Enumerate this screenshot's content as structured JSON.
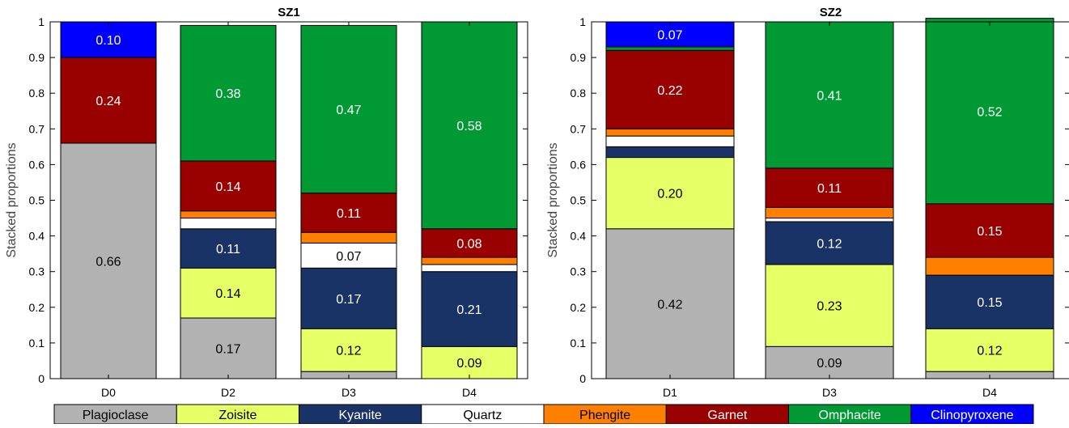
{
  "legend": [
    {
      "name": "Plagioclase",
      "color": "#b2b2b2",
      "text_color": "#000000"
    },
    {
      "name": "Zoisite",
      "color": "#e6ff66",
      "text_color": "#000000"
    },
    {
      "name": "Kyanite",
      "color": "#1a3366",
      "text_color": "#ffffff"
    },
    {
      "name": "Quartz",
      "color": "#ffffff",
      "text_color": "#000000"
    },
    {
      "name": "Phengite",
      "color": "#ff8000",
      "text_color": "#000000"
    },
    {
      "name": "Garnet",
      "color": "#990000",
      "text_color": "#ffffff"
    },
    {
      "name": "Omphacite",
      "color": "#009933",
      "text_color": "#ffffff"
    },
    {
      "name": "Clinopyroxene",
      "color": "#0000ff",
      "text_color": "#ffffff"
    }
  ],
  "chart_data": [
    {
      "type": "bar",
      "stacked": true,
      "title": "SZ1",
      "ylabel": "Stacked proportions",
      "ylim": [
        0,
        1
      ],
      "yticks": [
        "0",
        "0.1",
        "0.2",
        "0.3",
        "0.4",
        "0.5",
        "0.6",
        "0.7",
        "0.8",
        "0.9",
        "1"
      ],
      "categories": [
        "D0",
        "D2",
        "D3",
        "D4"
      ],
      "series": [
        {
          "name": "Plagioclase",
          "values": [
            0.66,
            0.17,
            0.02,
            0.0
          ],
          "labels": [
            "0.66",
            "0.17",
            "",
            ""
          ]
        },
        {
          "name": "Zoisite",
          "values": [
            0.0,
            0.14,
            0.12,
            0.09
          ],
          "labels": [
            "",
            "0.14",
            "0.12",
            "0.09"
          ]
        },
        {
          "name": "Kyanite",
          "values": [
            0.0,
            0.11,
            0.17,
            0.21
          ],
          "labels": [
            "",
            "0.11",
            "0.17",
            "0.21"
          ]
        },
        {
          "name": "Quartz",
          "values": [
            0.0,
            0.03,
            0.07,
            0.02
          ],
          "labels": [
            "",
            "",
            "0.07",
            ""
          ]
        },
        {
          "name": "Phengite",
          "values": [
            0.0,
            0.02,
            0.03,
            0.02
          ],
          "labels": [
            "",
            "",
            "",
            ""
          ]
        },
        {
          "name": "Garnet",
          "values": [
            0.24,
            0.14,
            0.11,
            0.08
          ],
          "labels": [
            "0.24",
            "0.14",
            "0.11",
            "0.08"
          ]
        },
        {
          "name": "Omphacite",
          "values": [
            0.0,
            0.38,
            0.47,
            0.58
          ],
          "labels": [
            "",
            "0.38",
            "0.47",
            "0.58"
          ]
        },
        {
          "name": "Clinopyroxene",
          "values": [
            0.1,
            0.0,
            0.0,
            0.0
          ],
          "labels": [
            "0.10",
            "",
            "",
            ""
          ]
        }
      ]
    },
    {
      "type": "bar",
      "stacked": true,
      "title": "SZ2",
      "ylabel": "Stacked proportions",
      "ylim": [
        0,
        1
      ],
      "yticks": [
        "0",
        "0.1",
        "0.2",
        "0.3",
        "0.4",
        "0.5",
        "0.6",
        "0.7",
        "0.8",
        "0.9",
        "1"
      ],
      "categories": [
        "D1",
        "D3",
        "D4"
      ],
      "series": [
        {
          "name": "Plagioclase",
          "values": [
            0.42,
            0.09,
            0.02
          ],
          "labels": [
            "0.42",
            "0.09",
            ""
          ]
        },
        {
          "name": "Zoisite",
          "values": [
            0.2,
            0.23,
            0.12
          ],
          "labels": [
            "0.20",
            "0.23",
            "0.12"
          ]
        },
        {
          "name": "Kyanite",
          "values": [
            0.03,
            0.12,
            0.15
          ],
          "labels": [
            "",
            "0.12",
            "0.15"
          ]
        },
        {
          "name": "Quartz",
          "values": [
            0.03,
            0.01,
            0.0
          ],
          "labels": [
            "",
            "",
            ""
          ]
        },
        {
          "name": "Phengite",
          "values": [
            0.02,
            0.03,
            0.05
          ],
          "labels": [
            "",
            "",
            ""
          ]
        },
        {
          "name": "Garnet",
          "values": [
            0.22,
            0.11,
            0.15
          ],
          "labels": [
            "0.22",
            "0.11",
            "0.15"
          ]
        },
        {
          "name": "Omphacite",
          "values": [
            0.01,
            0.41,
            0.52
          ],
          "labels": [
            "",
            "0.41",
            "0.52"
          ]
        },
        {
          "name": "Clinopyroxene",
          "values": [
            0.07,
            0.0,
            0.0
          ],
          "labels": [
            "0.07",
            "",
            ""
          ]
        }
      ]
    }
  ]
}
